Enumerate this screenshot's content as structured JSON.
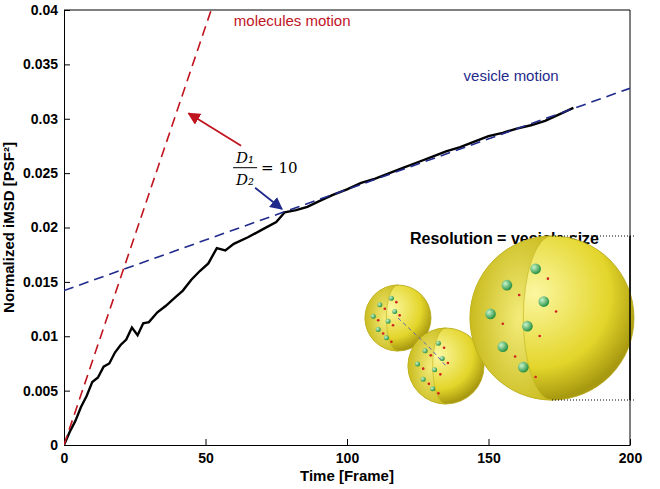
{
  "chart_data": {
    "type": "line",
    "x_label": "Time [Frame]",
    "y_label": "Normalized iMSD [PSF²]",
    "xlim": [
      0,
      200
    ],
    "ylim": [
      0,
      0.04
    ],
    "xticks": [
      0,
      50,
      100,
      150,
      200
    ],
    "yticks": [
      0,
      0.005,
      0.01,
      0.015,
      0.02,
      0.025,
      0.03,
      0.035,
      0.04
    ],
    "series": [
      {
        "color": "#000000",
        "line_style": "solid",
        "x": [
          0,
          2,
          4,
          6,
          8,
          10,
          12,
          14,
          16,
          18,
          20,
          22,
          24,
          26,
          28,
          30,
          33,
          36,
          39,
          42,
          45,
          48,
          51,
          54,
          57,
          60,
          65,
          70,
          75,
          78,
          82,
          86,
          90,
          95,
          100,
          105,
          110,
          115,
          120,
          125,
          130,
          135,
          140,
          145,
          150,
          155,
          160,
          165,
          170,
          175,
          180
        ],
        "values": [
          0,
          0.0012,
          0.0022,
          0.0035,
          0.0045,
          0.0058,
          0.0062,
          0.0072,
          0.0075,
          0.0085,
          0.0092,
          0.0097,
          0.0108,
          0.0101,
          0.0112,
          0.0113,
          0.0122,
          0.0128,
          0.0135,
          0.0142,
          0.0152,
          0.016,
          0.0167,
          0.0181,
          0.0179,
          0.0185,
          0.0191,
          0.0198,
          0.0205,
          0.0214,
          0.0216,
          0.0219,
          0.0224,
          0.023,
          0.0235,
          0.0241,
          0.0245,
          0.025,
          0.0255,
          0.026,
          0.0265,
          0.027,
          0.0274,
          0.0279,
          0.0284,
          0.0287,
          0.0291,
          0.0294,
          0.0298,
          0.0304,
          0.031
        ]
      },
      {
        "color": "#c0141e",
        "line_style": "dashed",
        "x": [
          0,
          52
        ],
        "values": [
          0,
          0.04
        ]
      },
      {
        "color": "#1f2a8c",
        "line_style": "dashed",
        "x": [
          0,
          200
        ],
        "values": [
          0.0142,
          0.0328
        ]
      }
    ],
    "annotations": [
      {
        "text": "molecules motion",
        "color": "#c0141e"
      },
      {
        "text": "vesicle motion",
        "color": "#1f2a8c"
      },
      {
        "text": "Resolution = vesicle size",
        "color": "#000000"
      }
    ],
    "ratio_label": {
      "numerator": "D₁",
      "denominator": "D₂",
      "text": "= 10"
    }
  }
}
